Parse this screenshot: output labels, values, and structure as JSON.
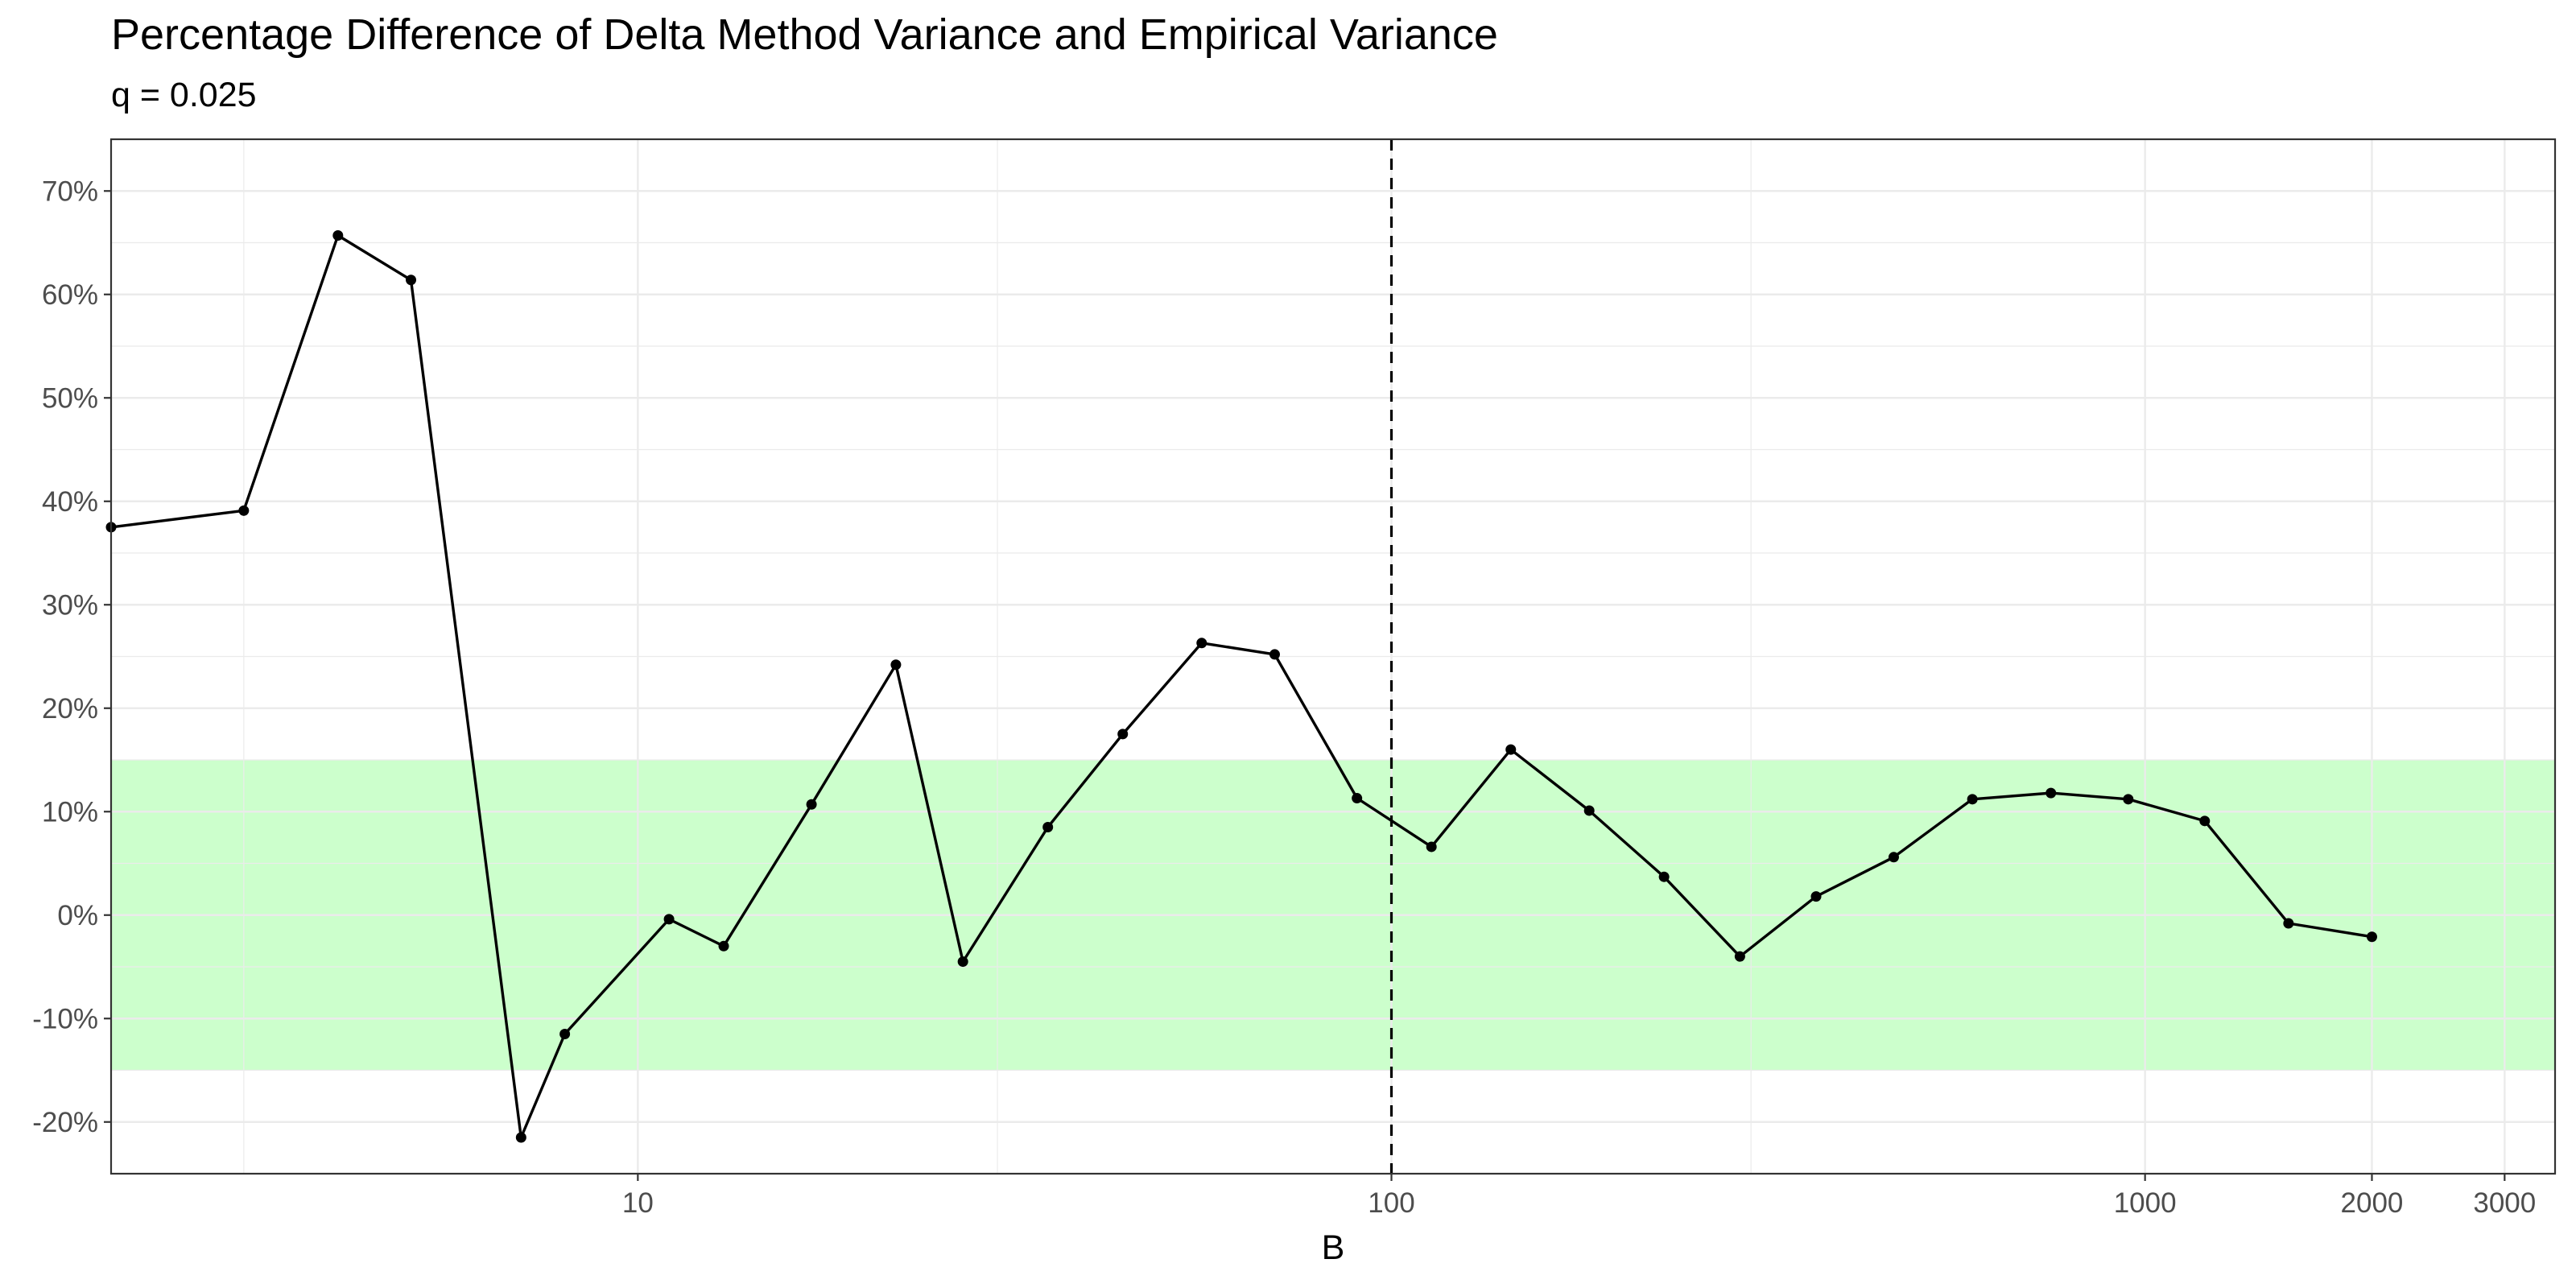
{
  "chart_data": {
    "type": "line",
    "title": "Percentage Difference of Delta Method Variance and Empirical Variance",
    "subtitle": "q = 0.025",
    "xlabel": "B",
    "ylabel": "",
    "x_scale": "log10",
    "xlim": [
      2,
      3500
    ],
    "ylim": [
      -25,
      75
    ],
    "x_ticks": [
      10,
      100,
      1000,
      2000,
      3000
    ],
    "x_tick_labels": [
      "10",
      "100",
      "1000",
      "2000",
      "3000"
    ],
    "x_minor_gridlines": [
      3,
      30,
      300
    ],
    "y_ticks": [
      -20,
      -10,
      0,
      10,
      20,
      30,
      40,
      50,
      60,
      70
    ],
    "y_tick_labels": [
      "-20%",
      "-10%",
      "0%",
      "10%",
      "20%",
      "30%",
      "40%",
      "50%",
      "60%",
      "70%"
    ],
    "grid": true,
    "band": {
      "ymin": -15,
      "ymax": 15,
      "color": "#ccffcc"
    },
    "vline": {
      "x": 100,
      "style": "dashed",
      "color": "#000000"
    },
    "line_color": "#000000",
    "series": [
      {
        "x": [
          2,
          3,
          4,
          5,
          7,
          8,
          11,
          13,
          17,
          22,
          27,
          35,
          44,
          56,
          70,
          90,
          113,
          144,
          183,
          230,
          290,
          366,
          464,
          590,
          750,
          950,
          1200,
          1550,
          2000
        ],
        "y": [
          37.5,
          39.1,
          65.7,
          61.4,
          -21.5,
          -11.5,
          -0.4,
          -3.0,
          10.7,
          24.2,
          -4.5,
          8.5,
          17.5,
          26.3,
          25.2,
          11.3,
          6.6,
          16.0,
          10.1,
          3.7,
          -4.0,
          1.8,
          5.6,
          11.2,
          11.8,
          11.2,
          9.1,
          -0.8,
          -2.1
        ]
      }
    ]
  }
}
